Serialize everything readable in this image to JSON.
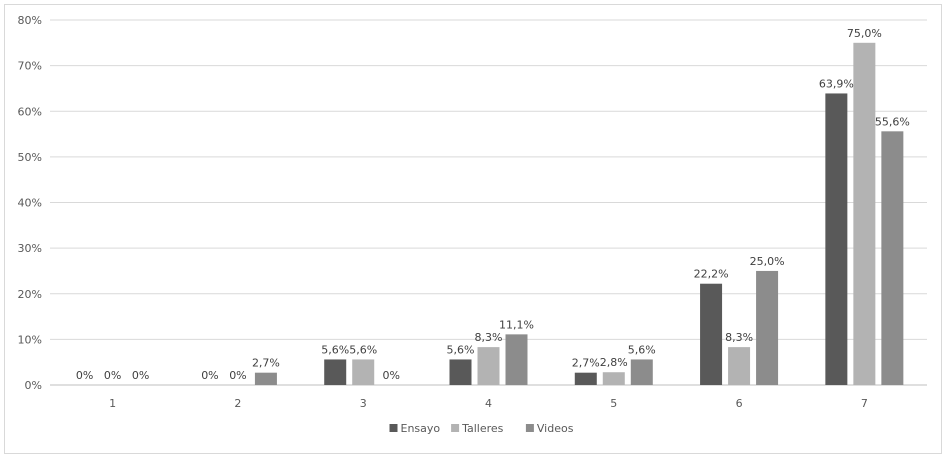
{
  "chart_data": {
    "type": "bar",
    "categories": [
      "1",
      "2",
      "3",
      "4",
      "5",
      "6",
      "7"
    ],
    "series": [
      {
        "name": "Ensayo",
        "color": "#595959",
        "values": [
          0,
          0,
          5.6,
          5.6,
          2.7,
          22.2,
          63.9
        ],
        "labels": [
          "0%",
          "0%",
          "5,6%",
          "5,6%",
          "2,7%",
          "22,2%",
          "63,9%"
        ]
      },
      {
        "name": "Talleres",
        "color": "#b3b3b3",
        "values": [
          0,
          0,
          5.6,
          8.3,
          2.8,
          8.3,
          75.0
        ],
        "labels": [
          "0%",
          "0%",
          "5,6%",
          "8,3%",
          "2,8%",
          "8,3%",
          "75,0%"
        ]
      },
      {
        "name": "Videos",
        "color": "#8c8c8c",
        "values": [
          0,
          2.7,
          0,
          11.1,
          5.6,
          25.0,
          55.6
        ],
        "labels": [
          "0%",
          "2,7%",
          "0%",
          "11,1%",
          "5,6%",
          "25,0%",
          "55,6%"
        ]
      }
    ],
    "y_ticks": [
      "0%",
      "10%",
      "20%",
      "30%",
      "40%",
      "50%",
      "60%",
      "70%",
      "80%"
    ],
    "ylim": [
      0,
      80
    ],
    "grid": true,
    "legend": "bottom-center",
    "title": "",
    "xlabel": "",
    "ylabel": ""
  }
}
